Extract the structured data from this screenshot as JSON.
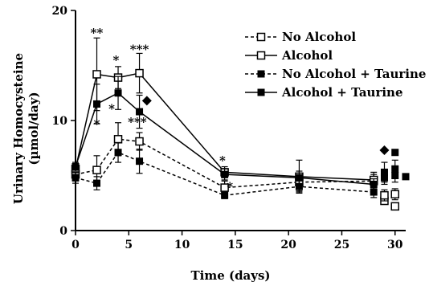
{
  "chart_data": {
    "type": "line",
    "xlabel": "Time (days)",
    "ylabel_line1": "Urinary Homocysteine",
    "ylabel_line2": "(µmol/day)",
    "xlim": [
      0,
      31
    ],
    "ylim": [
      0,
      20
    ],
    "xticks": [
      0,
      5,
      10,
      15,
      20,
      25,
      30
    ],
    "yticks": [
      0,
      10,
      20
    ],
    "grid": false,
    "legend_placement": "top-right",
    "series": [
      {
        "name": "No Alcohol",
        "line": "dashed",
        "marker": "open-square",
        "points": [
          {
            "x": 0,
            "y": 5.1,
            "err": 0.6
          },
          {
            "x": 2,
            "y": 5.5,
            "err": 1.3
          },
          {
            "x": 4,
            "y": 8.3,
            "err": 1.5
          },
          {
            "x": 6,
            "y": 8.1,
            "err": 0.8
          },
          {
            "x": 14,
            "y": 3.9,
            "err": 0.6
          },
          {
            "x": 21,
            "y": 4.4,
            "err": 0.8
          },
          {
            "x": 28,
            "y": 4.5,
            "err": 0.6
          }
        ]
      },
      {
        "name": "Alcohol",
        "line": "solid",
        "marker": "open-square",
        "points": [
          {
            "x": 0,
            "y": 5.6,
            "err": 0.5
          },
          {
            "x": 2,
            "y": 14.2,
            "err": 3.3
          },
          {
            "x": 4,
            "y": 13.9,
            "err": 1.0
          },
          {
            "x": 6,
            "y": 14.3,
            "err": 1.8
          },
          {
            "x": 14,
            "y": 5.3,
            "err": 0.5
          },
          {
            "x": 21,
            "y": 4.9,
            "err": 1.5
          },
          {
            "x": 28,
            "y": 4.6,
            "err": 0.7
          }
        ]
      },
      {
        "name": "No Alcohol + Taurine",
        "line": "dashed",
        "marker": "filled-square",
        "points": [
          {
            "x": 0,
            "y": 4.8,
            "err": 0.5
          },
          {
            "x": 2,
            "y": 4.3,
            "err": 0.6
          },
          {
            "x": 4,
            "y": 7.1,
            "err": 0.9
          },
          {
            "x": 6,
            "y": 6.3,
            "err": 1.1
          },
          {
            "x": 14,
            "y": 3.2,
            "err": 0.3
          },
          {
            "x": 21,
            "y": 4.0,
            "err": 0.5
          },
          {
            "x": 28,
            "y": 3.5,
            "err": 0.5
          }
        ]
      },
      {
        "name": "Alcohol + Taurine",
        "line": "solid",
        "marker": "filled-square",
        "points": [
          {
            "x": 0,
            "y": 5.8,
            "err": 0.4
          },
          {
            "x": 2,
            "y": 11.5,
            "err": 1.8
          },
          {
            "x": 4,
            "y": 12.5,
            "err": 1.5
          },
          {
            "x": 6,
            "y": 10.8,
            "err": 1.5
          },
          {
            "x": 14,
            "y": 5.1,
            "err": 0.5
          },
          {
            "x": 21,
            "y": 4.8,
            "err": 0.6
          },
          {
            "x": 28,
            "y": 4.2,
            "err": 0.5
          }
        ]
      }
    ],
    "extra_points": [
      {
        "x": 29,
        "y": 2.7,
        "err": 0.3,
        "marker": "open-square"
      },
      {
        "x": 30,
        "y": 2.2,
        "err": 0.3,
        "marker": "open-square"
      },
      {
        "x": 29,
        "y": 3.2,
        "err": 0.5,
        "marker": "open-square"
      },
      {
        "x": 30,
        "y": 3.3,
        "err": 0.5,
        "marker": "open-square"
      },
      {
        "x": 29,
        "y": 4.8,
        "err": 0.6,
        "marker": "filled-square"
      },
      {
        "x": 30,
        "y": 5.0,
        "err": 0.6,
        "marker": "filled-square"
      },
      {
        "x": 31,
        "y": 4.9,
        "err": 0.0,
        "marker": "filled-square"
      },
      {
        "x": 29,
        "y": 5.3,
        "err": 0.9,
        "marker": "filled-square"
      },
      {
        "x": 30,
        "y": 5.6,
        "err": 0.8,
        "marker": "filled-square"
      },
      {
        "x": 30,
        "y": 7.1,
        "err": 0.0,
        "marker": "filled-square"
      },
      {
        "x": 29,
        "y": 7.3,
        "err": 0.0,
        "marker": "filled-diamond"
      },
      {
        "x": 6.7,
        "y": 11.8,
        "err": 0.0,
        "marker": "filled-diamond"
      }
    ],
    "annotations": [
      {
        "text": "**",
        "x": 2,
        "y": 17.6
      },
      {
        "text": "*",
        "x": 3.8,
        "y": 15.1
      },
      {
        "text": "***",
        "x": 6,
        "y": 16.1
      },
      {
        "text": "*",
        "x": 3.4,
        "y": 10.7
      },
      {
        "text": "*",
        "x": 2,
        "y": 9.3
      },
      {
        "text": "***",
        "x": 5.8,
        "y": 9.5
      },
      {
        "text": "*",
        "x": 13.8,
        "y": 6.0
      },
      {
        "text": "*",
        "x": 14.5,
        "y": 3.6
      }
    ]
  }
}
